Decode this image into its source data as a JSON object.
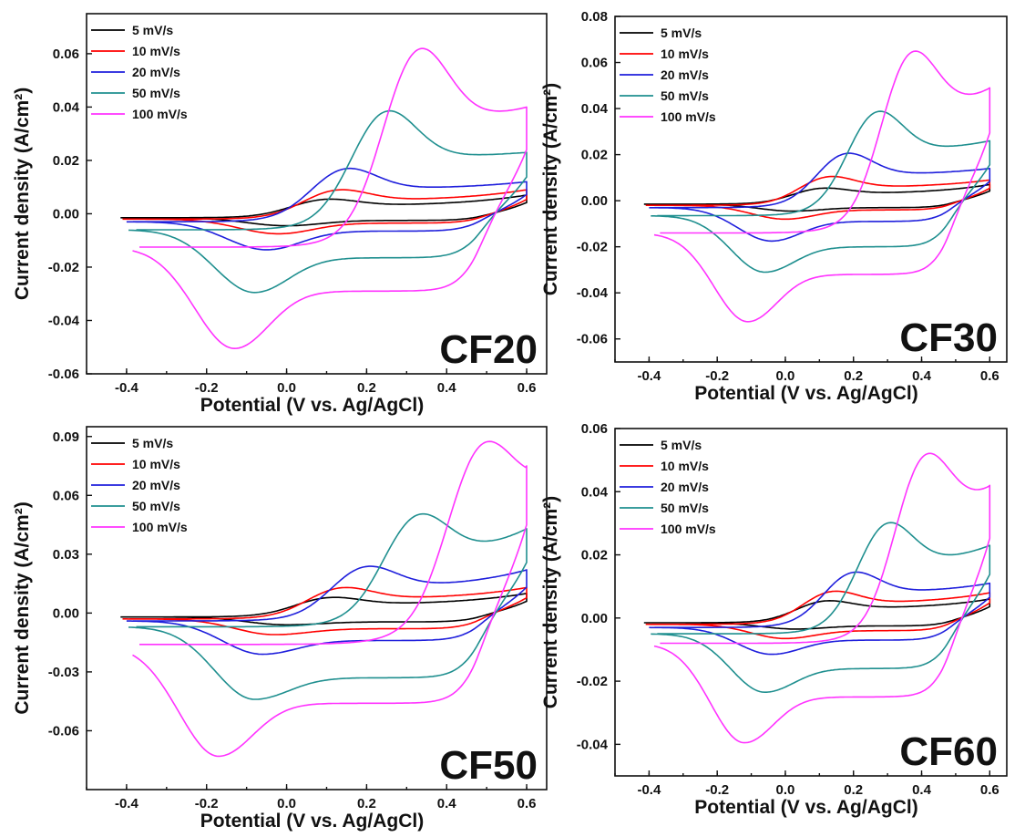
{
  "colors": {
    "5 mV/s": "#000000",
    "10 mV/s": "#ff0000",
    "20 mV/s": "#1f1fdc",
    "50 mV/s": "#1f8f8f",
    "100 mV/s": "#ff33ff"
  },
  "chart_data": [
    {
      "type": "line",
      "panel_label": "CF20",
      "xlabel": "Potential (V vs. Ag/AgCl)",
      "ylabel": "Current density (A/cm²)",
      "xlim": [
        -0.5,
        0.65
      ],
      "ylim": [
        -0.06,
        0.075
      ],
      "xticks": [
        -0.4,
        -0.2,
        0.0,
        0.2,
        0.4,
        0.6
      ],
      "xtick_labels": [
        "-0.4",
        "-0.2",
        "0.0",
        "0.2",
        "0.4",
        "0.6"
      ],
      "yticks": [
        -0.06,
        -0.04,
        -0.02,
        0.0,
        0.02,
        0.04,
        0.06
      ],
      "ytick_labels": [
        "-0.06",
        "-0.04",
        "-0.02",
        "0.00",
        "0.02",
        "0.04",
        "0.06"
      ],
      "legend_position": "top-left",
      "series": [
        {
          "name": "5 mV/s",
          "peak_anodic": [
            0.09,
            0.0055
          ],
          "peak_cathodic": [
            0.0,
            -0.0045
          ],
          "upper_end": 0.007,
          "lower_start": -0.0015,
          "lower_mid": -0.0025
        },
        {
          "name": "10 mV/s",
          "peak_anodic": [
            0.12,
            0.009
          ],
          "peak_cathodic": [
            -0.02,
            -0.0075
          ],
          "upper_end": 0.009,
          "lower_start": -0.002,
          "lower_mid": -0.0035
        },
        {
          "name": "20 mV/s",
          "peak_anodic": [
            0.14,
            0.017
          ],
          "peak_cathodic": [
            -0.05,
            -0.0135
          ],
          "upper_end": 0.012,
          "lower_start": -0.003,
          "lower_mid": -0.0065
        },
        {
          "name": "50 mV/s",
          "peak_anodic": [
            0.24,
            0.0385
          ],
          "peak_cathodic": [
            -0.08,
            -0.0295
          ],
          "upper_end": 0.023,
          "lower_start": -0.006,
          "lower_mid": -0.0165
        },
        {
          "name": "100 mV/s",
          "peak_anodic": [
            0.32,
            0.0615
          ],
          "peak_cathodic": [
            -0.13,
            -0.0505
          ],
          "upper_end": 0.04,
          "lower_start": -0.0125,
          "lower_mid": -0.029
        }
      ]
    },
    {
      "type": "line",
      "panel_label": "CF30",
      "xlabel": "Potential (V vs. Ag/AgCl)",
      "ylabel": "Current density (A/cm²)",
      "xlim": [
        -0.5,
        0.65
      ],
      "ylim": [
        -0.07,
        0.08
      ],
      "xticks": [
        -0.4,
        -0.2,
        0.0,
        0.2,
        0.4,
        0.6
      ],
      "xtick_labels": [
        "-0.4",
        "-0.2",
        "0.0",
        "0.2",
        "0.4",
        "0.6"
      ],
      "yticks": [
        -0.06,
        -0.04,
        -0.02,
        0.0,
        0.02,
        0.04,
        0.06,
        0.08
      ],
      "ytick_labels": [
        "-0.06",
        "-0.04",
        "-0.02",
        "0.00",
        "0.02",
        "0.04",
        "0.06",
        "0.08"
      ],
      "legend_position": "top-left",
      "series": [
        {
          "name": "5 mV/s",
          "peak_anodic": [
            0.1,
            0.0055
          ],
          "peak_cathodic": [
            0.02,
            -0.0045
          ],
          "upper_end": 0.007,
          "lower_start": -0.0015,
          "lower_mid": -0.003
        },
        {
          "name": "10 mV/s",
          "peak_anodic": [
            0.12,
            0.0105
          ],
          "peak_cathodic": [
            0.0,
            -0.008
          ],
          "upper_end": 0.009,
          "lower_start": -0.002,
          "lower_mid": -0.004
        },
        {
          "name": "20 mV/s",
          "peak_anodic": [
            0.17,
            0.0205
          ],
          "peak_cathodic": [
            -0.04,
            -0.0175
          ],
          "upper_end": 0.014,
          "lower_start": -0.003,
          "lower_mid": -0.009
        },
        {
          "name": "50 mV/s",
          "peak_anodic": [
            0.26,
            0.0385
          ],
          "peak_cathodic": [
            -0.06,
            -0.031
          ],
          "upper_end": 0.026,
          "lower_start": -0.0065,
          "lower_mid": -0.02
        },
        {
          "name": "100 mV/s",
          "peak_anodic": [
            0.36,
            0.0625
          ],
          "peak_cathodic": [
            -0.11,
            -0.0525
          ],
          "upper_end": 0.049,
          "lower_start": -0.014,
          "lower_mid": -0.032
        }
      ]
    },
    {
      "type": "line",
      "panel_label": "CF50",
      "xlabel": "Potential (V vs. Ag/AgCl)",
      "ylabel": "Current density (A/cm²)",
      "xlim": [
        -0.5,
        0.65
      ],
      "ylim": [
        -0.09,
        0.095
      ],
      "xticks": [
        -0.4,
        -0.2,
        0.0,
        0.2,
        0.4,
        0.6
      ],
      "xtick_labels": [
        "-0.4",
        "-0.2",
        "0.0",
        "0.2",
        "0.4",
        "0.6"
      ],
      "yticks": [
        -0.06,
        -0.03,
        0.0,
        0.03,
        0.06,
        0.09
      ],
      "ytick_labels": [
        "-0.06",
        "-0.03",
        "0.00",
        "0.03",
        "0.06",
        "0.09"
      ],
      "legend_position": "top-left",
      "series": [
        {
          "name": "5 mV/s",
          "peak_anodic": [
            0.1,
            0.008
          ],
          "peak_cathodic": [
            0.0,
            -0.006
          ],
          "upper_end": 0.01,
          "lower_start": -0.002,
          "lower_mid": -0.0045
        },
        {
          "name": "10 mV/s",
          "peak_anodic": [
            0.13,
            0.013
          ],
          "peak_cathodic": [
            -0.03,
            -0.011
          ],
          "upper_end": 0.013,
          "lower_start": -0.003,
          "lower_mid": -0.008
        },
        {
          "name": "20 mV/s",
          "peak_anodic": [
            0.19,
            0.0235
          ],
          "peak_cathodic": [
            -0.06,
            -0.021
          ],
          "upper_end": 0.022,
          "lower_start": -0.004,
          "lower_mid": -0.014
        },
        {
          "name": "50 mV/s",
          "peak_anodic": [
            0.32,
            0.048
          ],
          "peak_cathodic": [
            -0.08,
            -0.044
          ],
          "upper_end": 0.043,
          "lower_start": -0.007,
          "lower_mid": -0.033
        },
        {
          "name": "100 mV/s",
          "peak_anodic": [
            0.48,
            0.078
          ],
          "peak_cathodic": [
            -0.17,
            -0.073
          ],
          "upper_end": 0.075,
          "lower_start": -0.016,
          "lower_mid": -0.046
        }
      ]
    },
    {
      "type": "line",
      "panel_label": "CF60",
      "xlabel": "Potential (V vs. Ag/AgCl)",
      "ylabel": "Current density (A/cm²)",
      "xlim": [
        -0.5,
        0.65
      ],
      "ylim": [
        -0.05,
        0.06
      ],
      "xticks": [
        -0.4,
        -0.2,
        0.0,
        0.2,
        0.4,
        0.6
      ],
      "xtick_labels": [
        "-0.4",
        "-0.2",
        "0.0",
        "0.2",
        "0.4",
        "0.6"
      ],
      "yticks": [
        -0.04,
        -0.02,
        0.0,
        0.02,
        0.04,
        0.06
      ],
      "ytick_labels": [
        "-0.04",
        "-0.02",
        "0.00",
        "0.02",
        "0.04",
        "0.06"
      ],
      "legend_position": "top-left",
      "series": [
        {
          "name": "5 mV/s",
          "peak_anodic": [
            0.11,
            0.0055
          ],
          "peak_cathodic": [
            0.03,
            -0.0035
          ],
          "upper_end": 0.006,
          "lower_start": -0.0015,
          "lower_mid": -0.0025
        },
        {
          "name": "10 mV/s",
          "peak_anodic": [
            0.13,
            0.0085
          ],
          "peak_cathodic": [
            0.0,
            -0.0065
          ],
          "upper_end": 0.008,
          "lower_start": -0.002,
          "lower_mid": -0.004
        },
        {
          "name": "20 mV/s",
          "peak_anodic": [
            0.19,
            0.0145
          ],
          "peak_cathodic": [
            -0.04,
            -0.0115
          ],
          "upper_end": 0.011,
          "lower_start": -0.003,
          "lower_mid": -0.007
        },
        {
          "name": "50 mV/s",
          "peak_anodic": [
            0.29,
            0.0295
          ],
          "peak_cathodic": [
            -0.06,
            -0.0235
          ],
          "upper_end": 0.023,
          "lower_start": -0.005,
          "lower_mid": -0.016
        },
        {
          "name": "100 mV/s",
          "peak_anodic": [
            0.4,
            0.048
          ],
          "peak_cathodic": [
            -0.12,
            -0.0395
          ],
          "upper_end": 0.042,
          "lower_start": -0.008,
          "lower_mid": -0.025
        }
      ]
    }
  ]
}
